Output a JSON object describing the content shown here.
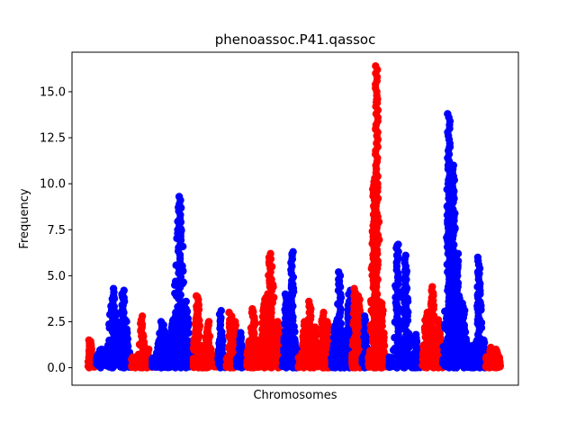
{
  "chart_data": {
    "type": "scatter",
    "title": "phenoassoc.P41.qassoc",
    "xlabel": "Chromosomes",
    "ylabel": "Frequency",
    "ylim": [
      -0.95,
      17.15
    ],
    "yticks": [
      0.0,
      2.5,
      5.0,
      7.5,
      10.0,
      12.5,
      15.0
    ],
    "ytick_labels": [
      "0.0",
      "2.5",
      "5.0",
      "7.5",
      "10.0",
      "12.5",
      "15.0"
    ],
    "xticks_shown": false,
    "grid": false,
    "colors": [
      "#ff0000",
      "#0000ff"
    ],
    "chromosome_clusters": [
      {
        "color": "#ff0000",
        "x": [
          0.0,
          2.0
        ],
        "peaks": [
          [
            0.5,
            1.5
          ]
        ]
      },
      {
        "color": "#0000ff",
        "x": [
          2.0,
          10.5
        ],
        "peaks": [
          [
            3,
            1.0
          ],
          [
            6,
            4.3
          ],
          [
            8.5,
            4.2
          ]
        ]
      },
      {
        "color": "#ff0000",
        "x": [
          10.5,
          15.5
        ],
        "peaks": [
          [
            13,
            2.8
          ],
          [
            14.5,
            1.0
          ]
        ]
      },
      {
        "color": "#0000ff",
        "x": [
          15.5,
          25.5
        ],
        "peaks": [
          [
            18,
            2.5
          ],
          [
            21,
            3.0
          ],
          [
            22.2,
            9.3
          ],
          [
            23.5,
            3.6
          ]
        ]
      },
      {
        "color": "#ff0000",
        "x": [
          25.5,
          31.5
        ],
        "peaks": [
          [
            26.5,
            3.9
          ],
          [
            27.5,
            1.0
          ],
          [
            29,
            2.5
          ]
        ]
      },
      {
        "color": "#0000ff",
        "x": [
          31.5,
          33.5
        ],
        "peaks": [
          [
            32.2,
            3.1
          ]
        ]
      },
      {
        "color": "#ff0000",
        "x": [
          33.5,
          36
        ],
        "peaks": [
          [
            34.5,
            3.0
          ],
          [
            35.5,
            2.5
          ]
        ]
      },
      {
        "color": "#0000ff",
        "x": [
          36,
          38.5
        ],
        "peaks": [
          [
            37,
            1.9
          ]
        ]
      },
      {
        "color": "#ff0000",
        "x": [
          38.5,
          47
        ],
        "peaks": [
          [
            40,
            3.2
          ],
          [
            43,
            3.8
          ],
          [
            44.2,
            6.2
          ],
          [
            46,
            2.5
          ]
        ]
      },
      {
        "color": "#0000ff",
        "x": [
          47,
          51
        ],
        "peaks": [
          [
            48,
            4.0
          ],
          [
            49.5,
            6.3
          ],
          [
            50.5,
            1.2
          ]
        ]
      },
      {
        "color": "#ff0000",
        "x": [
          51,
          56
        ],
        "peaks": [
          [
            52.5,
            2.5
          ],
          [
            53.8,
            3.6
          ],
          [
            55,
            2.2
          ]
        ]
      },
      {
        "color": "#ff0000",
        "x": [
          56,
          59
        ],
        "peaks": [
          [
            56.8,
            3.0
          ],
          [
            58,
            2.5
          ]
        ]
      },
      {
        "color": "#0000ff",
        "x": [
          59,
          64
        ],
        "peaks": [
          [
            60,
            2.5
          ],
          [
            61,
            5.2
          ],
          [
            62,
            2.0
          ],
          [
            63.4,
            4.2
          ]
        ]
      },
      {
        "color": "#ff0000",
        "x": [
          64,
          66.5
        ],
        "peaks": [
          [
            64.7,
            4.3
          ],
          [
            65.8,
            3.9
          ]
        ]
      },
      {
        "color": "#0000ff",
        "x": [
          66.5,
          68
        ],
        "peaks": [
          [
            67.2,
            2.8
          ]
        ]
      },
      {
        "color": "#ff0000",
        "x": [
          68,
          73
        ],
        "peaks": [
          [
            69.3,
            10.3
          ],
          [
            70,
            16.4
          ],
          [
            71.2,
            3.5
          ]
        ]
      },
      {
        "color": "#0000ff",
        "x": [
          73,
          78.5
        ],
        "peaks": [
          [
            75,
            6.7
          ],
          [
            77,
            6.1
          ]
        ]
      },
      {
        "color": "#0000ff",
        "x": [
          78.5,
          81
        ],
        "peaks": [
          [
            79.5,
            1.8
          ]
        ]
      },
      {
        "color": "#ff0000",
        "x": [
          81,
          86
        ],
        "peaks": [
          [
            82,
            3.0
          ],
          [
            83.5,
            4.4
          ],
          [
            85,
            2.6
          ]
        ]
      },
      {
        "color": "#0000ff",
        "x": [
          86,
          92
        ],
        "peaks": [
          [
            87.5,
            13.8
          ],
          [
            88.5,
            11.0
          ],
          [
            89.5,
            6.2
          ],
          [
            91,
            3.5
          ]
        ]
      },
      {
        "color": "#0000ff",
        "x": [
          92,
          96.5
        ],
        "peaks": [
          [
            93.5,
            1.2
          ],
          [
            94.8,
            6.0
          ],
          [
            96,
            1.5
          ]
        ]
      },
      {
        "color": "#ff0000",
        "x": [
          96.5,
          100
        ],
        "peaks": [
          [
            97.5,
            1.1
          ],
          [
            99,
            1.0
          ]
        ]
      }
    ]
  }
}
